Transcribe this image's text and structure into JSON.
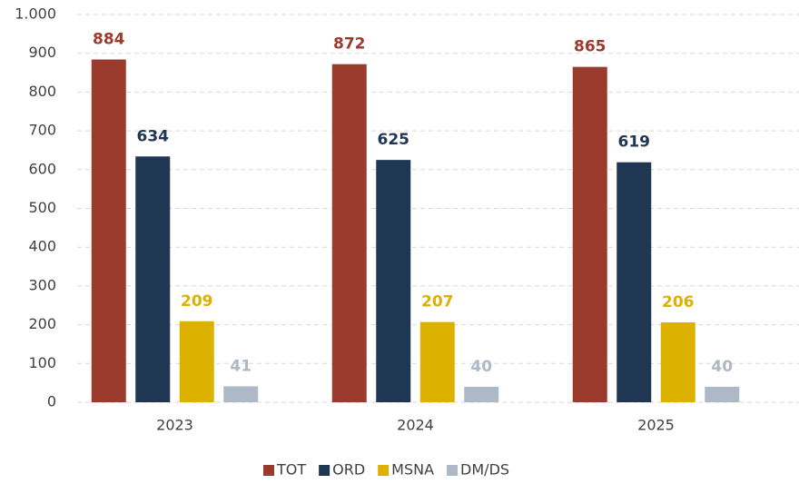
{
  "chart_data": {
    "type": "bar",
    "categories": [
      "2023",
      "2024",
      "2025"
    ],
    "series": [
      {
        "name": "TOT",
        "color": "#9b3b2e",
        "values": [
          884,
          872,
          865
        ]
      },
      {
        "name": "ORD",
        "color": "#1f3752",
        "values": [
          634,
          625,
          619
        ]
      },
      {
        "name": "MSNA",
        "color": "#dcb100",
        "values": [
          209,
          207,
          206
        ]
      },
      {
        "name": "DM/DS",
        "color": "#adb9c6",
        "values": [
          41,
          40,
          40
        ]
      }
    ],
    "ylim": [
      0,
      1000
    ],
    "yticks": [
      0,
      100,
      200,
      300,
      400,
      500,
      600,
      700,
      800,
      900,
      {
        "value": 1000,
        "label": "1.000"
      }
    ],
    "grid": true,
    "legend": "bottom"
  }
}
